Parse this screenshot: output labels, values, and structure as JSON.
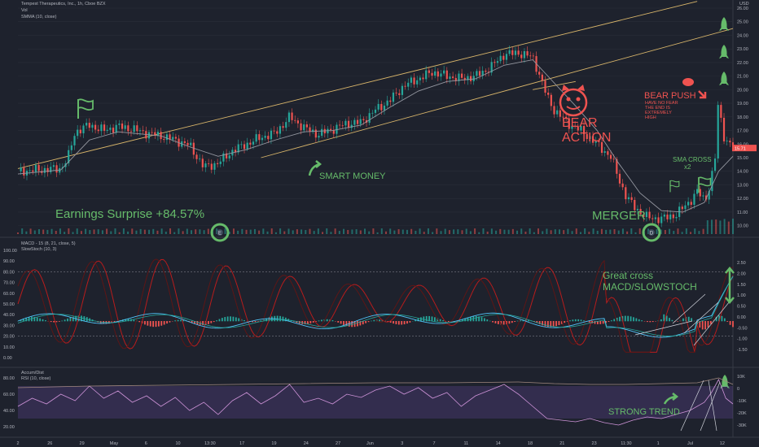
{
  "chart_data": {
    "type": "line",
    "title": "Tempest Therapeutics, Inc., 1h, Cboe BZX",
    "currency": "USD",
    "main_panel": {
      "volume_label": "Vol",
      "indicator_label": "SMMA (10, close)",
      "price_ticks": [
        "26.00",
        "25.00",
        "24.00",
        "23.00",
        "22.00",
        "21.00",
        "20.00",
        "19.00",
        "18.00",
        "17.00",
        "16.00",
        "15.00",
        "14.00",
        "13.00",
        "12.00",
        "11.00",
        "10.00"
      ],
      "ylim": [
        9.5,
        26.0
      ],
      "last_price_label": "15.71",
      "price_path": [
        [
          0,
          14.0
        ],
        [
          0.03,
          14.1
        ],
        [
          0.06,
          14.2
        ],
        [
          0.07,
          15.0
        ],
        [
          0.08,
          16.9
        ],
        [
          0.1,
          17.4
        ],
        [
          0.12,
          17.0
        ],
        [
          0.14,
          17.3
        ],
        [
          0.16,
          17.1
        ],
        [
          0.18,
          16.8
        ],
        [
          0.2,
          16.6
        ],
        [
          0.22,
          16.3
        ],
        [
          0.24,
          15.9
        ],
        [
          0.26,
          14.3
        ],
        [
          0.28,
          14.6
        ],
        [
          0.3,
          15.5
        ],
        [
          0.32,
          16.0
        ],
        [
          0.34,
          16.5
        ],
        [
          0.36,
          16.8
        ],
        [
          0.38,
          18.0
        ],
        [
          0.4,
          17.2
        ],
        [
          0.42,
          16.7
        ],
        [
          0.44,
          17.1
        ],
        [
          0.46,
          17.5
        ],
        [
          0.48,
          17.6
        ],
        [
          0.5,
          18.5
        ],
        [
          0.52,
          19.2
        ],
        [
          0.54,
          20.3
        ],
        [
          0.56,
          20.8
        ],
        [
          0.58,
          21.3
        ],
        [
          0.6,
          21.0
        ],
        [
          0.62,
          20.8
        ],
        [
          0.64,
          21.0
        ],
        [
          0.66,
          21.6
        ],
        [
          0.68,
          22.6
        ],
        [
          0.7,
          22.7
        ],
        [
          0.72,
          22.4
        ],
        [
          0.73,
          21.0
        ],
        [
          0.74,
          19.5
        ],
        [
          0.75,
          18.5
        ],
        [
          0.77,
          17.5
        ],
        [
          0.79,
          16.9
        ],
        [
          0.81,
          16.0
        ],
        [
          0.83,
          15.0
        ],
        [
          0.84,
          13.5
        ],
        [
          0.85,
          12.2
        ],
        [
          0.86,
          11.5
        ],
        [
          0.87,
          11.0
        ],
        [
          0.88,
          10.6
        ],
        [
          0.9,
          10.5
        ],
        [
          0.92,
          10.8
        ],
        [
          0.94,
          11.8
        ],
        [
          0.95,
          12.5
        ],
        [
          0.96,
          11.9
        ],
        [
          0.965,
          12.4
        ],
        [
          0.97,
          13.5
        ],
        [
          0.975,
          15.0
        ],
        [
          0.98,
          19.5
        ],
        [
          0.985,
          17.0
        ],
        [
          0.99,
          16.2
        ],
        [
          1.0,
          15.9
        ]
      ],
      "smma_path": [
        [
          0,
          13.8
        ],
        [
          0.06,
          14.1
        ],
        [
          0.1,
          16.3
        ],
        [
          0.14,
          16.9
        ],
        [
          0.2,
          16.6
        ],
        [
          0.24,
          15.8
        ],
        [
          0.28,
          15.1
        ],
        [
          0.32,
          15.6
        ],
        [
          0.36,
          16.3
        ],
        [
          0.4,
          16.9
        ],
        [
          0.44,
          17.0
        ],
        [
          0.48,
          17.4
        ],
        [
          0.52,
          18.7
        ],
        [
          0.56,
          19.9
        ],
        [
          0.6,
          20.6
        ],
        [
          0.64,
          20.8
        ],
        [
          0.68,
          21.8
        ],
        [
          0.72,
          22.2
        ],
        [
          0.75,
          20.5
        ],
        [
          0.78,
          18.8
        ],
        [
          0.81,
          17.0
        ],
        [
          0.84,
          14.6
        ],
        [
          0.87,
          12.4
        ],
        [
          0.9,
          11.1
        ],
        [
          0.93,
          11.0
        ],
        [
          0.96,
          11.7
        ],
        [
          0.98,
          14.0
        ],
        [
          1.0,
          15.1
        ]
      ],
      "trendlines": [
        {
          "from": [
            0.0,
            14.2
          ],
          "to": [
            0.95,
            26.5
          ]
        },
        {
          "from": [
            0.34,
            15.0
          ],
          "to": [
            1.0,
            24.5
          ]
        },
        {
          "from": [
            0.72,
            20.0
          ],
          "to": [
            0.78,
            20.6
          ]
        }
      ],
      "markers": [
        "flag-icon",
        "flag-icon",
        "flag-icon",
        "rocket-icon",
        "rocket-icon",
        "rocket-icon",
        "rocket-icon",
        "earnings-icon",
        "dividend-icon"
      ]
    },
    "macd_panel": {
      "label": "MACD - 15 (8, 21, close, 5)",
      "sublabel": "SlowStoch (10, 3)",
      "left_ticks": [
        "100.00",
        "90.00",
        "80.00",
        "70.00",
        "60.00",
        "50.00",
        "40.00",
        "30.00",
        "20.00",
        "10.00",
        "0.00"
      ],
      "right_ticks": [
        "2.50",
        "2.00",
        "1.50",
        "1.00",
        "0.50",
        "0.00",
        "-0.50",
        "-1.00",
        "-1.50"
      ],
      "stoch_bands": [
        80,
        20
      ]
    },
    "rsi_panel": {
      "label": "Accum/Dist",
      "sublabel": "RSI (10, close)",
      "left_ticks": [
        "80.00",
        "60.00",
        "40.00",
        "20.00"
      ],
      "right_ticks": [
        "10K",
        "0",
        "-10K",
        "-20K",
        "-30K"
      ],
      "band": [
        70,
        30
      ],
      "rsi_path": [
        [
          0,
          45
        ],
        [
          0.02,
          55
        ],
        [
          0.04,
          48
        ],
        [
          0.06,
          60
        ],
        [
          0.08,
          52
        ],
        [
          0.1,
          70
        ],
        [
          0.12,
          55
        ],
        [
          0.14,
          64
        ],
        [
          0.16,
          50
        ],
        [
          0.18,
          58
        ],
        [
          0.2,
          45
        ],
        [
          0.22,
          56
        ],
        [
          0.24,
          40
        ],
        [
          0.26,
          50
        ],
        [
          0.28,
          35
        ],
        [
          0.3,
          52
        ],
        [
          0.32,
          62
        ],
        [
          0.34,
          48
        ],
        [
          0.36,
          58
        ],
        [
          0.38,
          72
        ],
        [
          0.4,
          50
        ],
        [
          0.42,
          55
        ],
        [
          0.44,
          48
        ],
        [
          0.46,
          60
        ],
        [
          0.48,
          56
        ],
        [
          0.5,
          65
        ],
        [
          0.52,
          70
        ],
        [
          0.54,
          60
        ],
        [
          0.56,
          68
        ],
        [
          0.58,
          55
        ],
        [
          0.6,
          62
        ],
        [
          0.62,
          45
        ],
        [
          0.64,
          58
        ],
        [
          0.66,
          65
        ],
        [
          0.68,
          72
        ],
        [
          0.7,
          60
        ],
        [
          0.72,
          45
        ],
        [
          0.74,
          30
        ],
        [
          0.76,
          28
        ],
        [
          0.78,
          26
        ],
        [
          0.8,
          30
        ],
        [
          0.82,
          25
        ],
        [
          0.84,
          22
        ],
        [
          0.86,
          28
        ],
        [
          0.88,
          32
        ],
        [
          0.9,
          30
        ],
        [
          0.92,
          35
        ],
        [
          0.94,
          40
        ],
        [
          0.96,
          50
        ],
        [
          0.97,
          62
        ],
        [
          0.98,
          78
        ],
        [
          0.99,
          55
        ],
        [
          1.0,
          48
        ]
      ],
      "ad_path": [
        [
          0,
          68
        ],
        [
          0.1,
          70
        ],
        [
          0.2,
          71
        ],
        [
          0.3,
          72
        ],
        [
          0.4,
          73
        ],
        [
          0.5,
          74
        ],
        [
          0.6,
          74
        ],
        [
          0.7,
          75
        ],
        [
          0.75,
          73
        ],
        [
          0.8,
          72
        ],
        [
          0.85,
          72
        ],
        [
          0.9,
          73
        ],
        [
          0.95,
          74
        ],
        [
          0.98,
          80
        ],
        [
          1.0,
          72
        ]
      ]
    },
    "x_ticks": [
      "2",
      "26",
      "29",
      "May",
      "6",
      "10",
      "13:30",
      "17",
      "19",
      "24",
      "27",
      "Jun",
      "3",
      "7",
      "11",
      "14",
      "18",
      "21",
      "23",
      "11:30",
      "1",
      "Jul",
      "12"
    ],
    "annotations": {
      "earnings": "Earnings Surprise +84.57%",
      "merger": "MERGER",
      "smart_money": "SMART MONEY",
      "bear_action_1": "BEAR",
      "bear_action_2": "ACTION",
      "bear_push": "BEAR PUSH",
      "bear_push_note_1": "HAVE NO FEAR",
      "bear_push_note_2": "THE END IS",
      "bear_push_note_3": "EXTREMELY",
      "bear_push_note_4": "HIGH",
      "sma_cross_1": "SMA CROSS",
      "sma_cross_2": "x2",
      "great_cross_1": "Great cross",
      "great_cross_2": "MACD/SLOWSTOCH",
      "strong_trend": "STRONG TREND"
    },
    "colors": {
      "background": "#1e222d",
      "up": "#26a69a",
      "down": "#ef5350",
      "smma": "#9598a1",
      "trendline": "#d8b56a",
      "annotation_green": "#66bb6a",
      "annotation_red": "#ef5350",
      "band_purple": "#7e57c2"
    }
  }
}
